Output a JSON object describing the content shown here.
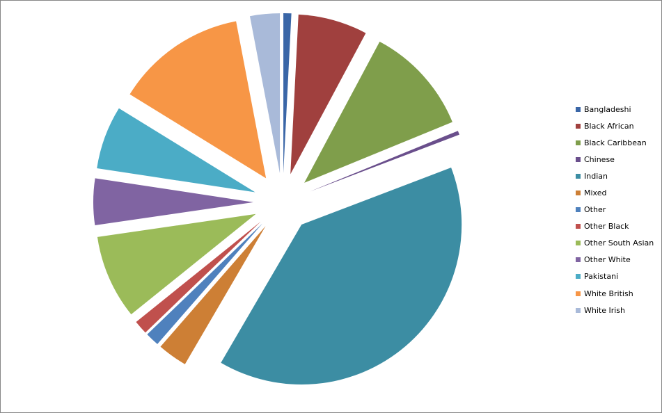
{
  "chart_data": {
    "type": "pie",
    "exploded": true,
    "title": "",
    "legend_position": "right",
    "categories": [
      "Bangladeshi",
      "Black African",
      "Black Caribbean",
      "Chinese",
      "Indian",
      "Mixed",
      "Other",
      "Other Black",
      "Other South Asian",
      "Other White",
      "Pakistani",
      "White British",
      "White Irish"
    ],
    "values": [
      0.8,
      7.0,
      11.0,
      0.4,
      39.2,
      3.0,
      1.4,
      1.4,
      8.5,
      4.7,
      6.4,
      13.2,
      3.0
    ],
    "colors": [
      "#3A66A7",
      "#A0403E",
      "#7F9E4B",
      "#6A4F8C",
      "#3C8DA3",
      "#CD7F35",
      "#4F81BD",
      "#C0504D",
      "#9BBB59",
      "#8064A2",
      "#4BACC6",
      "#F79646",
      "#A9BAD9"
    ]
  }
}
